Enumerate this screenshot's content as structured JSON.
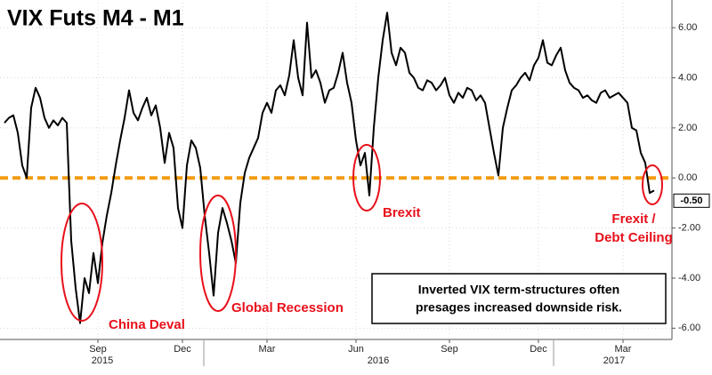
{
  "chart_data": {
    "type": "line",
    "title": "VIX Futs M4 - M1",
    "categories": [
      null,
      null,
      null,
      null,
      null,
      null,
      null,
      null,
      null,
      null,
      null,
      null,
      null,
      null,
      null,
      null,
      null,
      null,
      null,
      null,
      null,
      "Sep",
      null,
      null,
      null,
      null,
      null,
      null,
      null,
      null,
      null,
      null,
      null,
      null,
      null,
      null,
      null,
      null,
      null,
      null,
      "Dec",
      null,
      null,
      null,
      null,
      null,
      null,
      null,
      null,
      null,
      null,
      null,
      null,
      null,
      null,
      null,
      null,
      null,
      null,
      "Mar",
      null,
      null,
      null,
      null,
      null,
      null,
      null,
      null,
      null,
      null,
      null,
      null,
      null,
      null,
      null,
      null,
      null,
      null,
      null,
      "Jun",
      null,
      null,
      null,
      null,
      null,
      null,
      null,
      null,
      null,
      null,
      null,
      null,
      null,
      null,
      null,
      null,
      null,
      null,
      null,
      null,
      "Sep",
      null,
      null,
      null,
      null,
      null,
      null,
      null,
      null,
      null,
      null,
      null,
      null,
      null,
      null,
      null,
      null,
      null,
      null,
      null,
      "Dec",
      null,
      null,
      null,
      null,
      null,
      null,
      null,
      null,
      null,
      null,
      null,
      null,
      null,
      null,
      null,
      null,
      null,
      null,
      "Mar",
      null,
      null,
      null,
      null,
      null,
      null,
      null
    ],
    "year_labels": [
      "2015",
      "2016",
      "2017"
    ],
    "values": [
      2.2,
      2.4,
      2.5,
      1.8,
      0.5,
      0.0,
      2.8,
      3.6,
      3.2,
      2.4,
      2.0,
      2.3,
      2.1,
      2.4,
      2.2,
      -2.5,
      -4.4,
      -5.8,
      -4.0,
      -4.6,
      -3.0,
      -4.2,
      -2.6,
      -1.5,
      -0.6,
      0.5,
      1.5,
      2.4,
      3.5,
      2.6,
      2.3,
      2.8,
      3.2,
      2.5,
      2.9,
      2.0,
      0.6,
      1.8,
      1.2,
      -1.2,
      -2.0,
      0.5,
      1.5,
      1.2,
      0.4,
      -1.5,
      -3.0,
      -4.7,
      -2.2,
      -1.2,
      -1.8,
      -2.5,
      -3.4,
      -1.0,
      0.2,
      0.8,
      1.2,
      1.6,
      2.6,
      3.0,
      2.6,
      3.5,
      3.7,
      3.3,
      4.1,
      5.5,
      4.0,
      3.3,
      6.2,
      4.0,
      4.3,
      3.8,
      3.0,
      3.5,
      3.6,
      4.2,
      5.0,
      3.8,
      3.0,
      1.5,
      0.5,
      1.0,
      -0.7,
      2.0,
      4.0,
      5.5,
      6.6,
      5.0,
      4.5,
      5.2,
      5.0,
      4.2,
      4.0,
      3.6,
      3.5,
      3.9,
      3.8,
      3.5,
      3.7,
      4.0,
      3.3,
      3.0,
      3.4,
      3.2,
      3.6,
      3.5,
      3.1,
      3.3,
      3.0,
      2.0,
      1.0,
      0.1,
      2.0,
      2.8,
      3.5,
      3.7,
      4.0,
      4.2,
      3.9,
      4.5,
      4.8,
      5.5,
      4.6,
      4.5,
      4.9,
      5.2,
      4.3,
      3.8,
      3.6,
      3.5,
      3.2,
      3.3,
      3.1,
      3.0,
      3.4,
      3.5,
      3.2,
      3.3,
      3.4,
      3.2,
      3.0,
      2.0,
      1.9,
      1.0,
      0.6,
      -0.6,
      -0.5
    ],
    "color": "#000000",
    "last_value_label": "-0.50",
    "reference_line": {
      "value": 0,
      "color": "#f39c12"
    },
    "ylim": [
      -6.45,
      7.0
    ],
    "yticks": [
      {
        "value": 6,
        "label": "6.00"
      },
      {
        "value": 4,
        "label": "4.00"
      },
      {
        "value": 2,
        "label": "2.00"
      },
      {
        "value": 0,
        "label": "0.00"
      },
      {
        "value": -2,
        "label": "-2.00"
      },
      {
        "value": -4,
        "label": "-4.00"
      },
      {
        "value": -6,
        "label": "-6.00"
      }
    ],
    "grid": true,
    "annotations": [
      "China Deval",
      "Global Recession",
      "Brexit",
      "Frexit /",
      "Debt Ceiling"
    ],
    "annotation_color": "#e8101a",
    "note": [
      "Inverted VIX term-structures often",
      "presages increased downside risk."
    ]
  }
}
